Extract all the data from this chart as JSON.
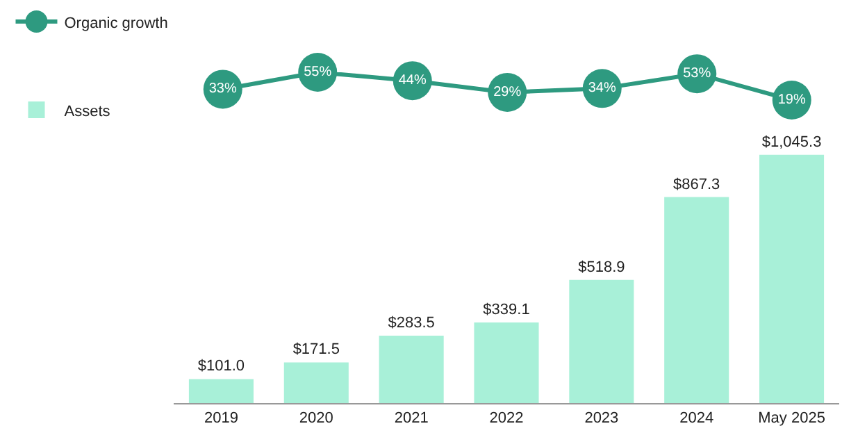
{
  "chart_data": [
    {
      "type": "line",
      "categories": [
        null,
        null,
        null,
        null,
        null,
        null,
        null
      ],
      "series": [
        {
          "name": "Organic growth",
          "color": "#2e9a80",
          "values": [
            33,
            55,
            44,
            29,
            34,
            53,
            19
          ],
          "value_labels": [
            "33%",
            "55%",
            "44%",
            "29%",
            "34%",
            "53%",
            "19%"
          ]
        }
      ],
      "marker": "circle",
      "line_style": "solid",
      "legend": "top left",
      "grid": false,
      "tick_labels": false
    },
    {
      "type": "bar",
      "categories": [
        "2019",
        "2020",
        "2021",
        "2022",
        "2023",
        "2024",
        "May 2025"
      ],
      "series": [
        {
          "name": "Assets",
          "color": "#a8f0d8",
          "values": [
            101.0,
            171.5,
            283.5,
            339.1,
            518.9,
            867.3,
            1045.3
          ],
          "value_labels": [
            "$101.0",
            "$171.5",
            "$283.5",
            "$339.1",
            "$518.9",
            "$867.3",
            "$1,045.3"
          ]
        }
      ],
      "legend": "top left",
      "grid": false,
      "tick_labels": "x"
    }
  ]
}
